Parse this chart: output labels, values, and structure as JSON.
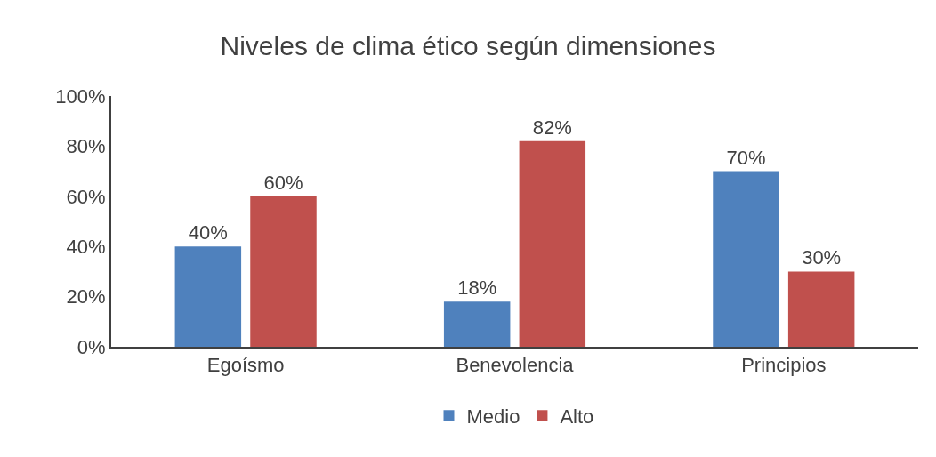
{
  "chart_data": {
    "type": "bar",
    "title": "Niveles de clima ético según dimensiones",
    "categories": [
      "Egoísmo",
      "Benevolencia",
      "Principios"
    ],
    "series": [
      {
        "name": "Medio",
        "color": "#4f81bd",
        "values": [
          40,
          18,
          70
        ],
        "value_labels": [
          "40%",
          "18%",
          "70%"
        ]
      },
      {
        "name": "Alto",
        "color": "#c0504d",
        "values": [
          60,
          82,
          30
        ],
        "value_labels": [
          "60%",
          "82%",
          "30%"
        ]
      }
    ],
    "ylim": [
      0,
      100
    ],
    "yticks": [
      {
        "value": 0,
        "label": "0%"
      },
      {
        "value": 20,
        "label": "20%"
      },
      {
        "value": 40,
        "label": "40%"
      },
      {
        "value": 60,
        "label": "60%"
      },
      {
        "value": 80,
        "label": "80%"
      },
      {
        "value": 100,
        "label": "100%"
      }
    ],
    "grid": false,
    "legend": "bottom"
  }
}
